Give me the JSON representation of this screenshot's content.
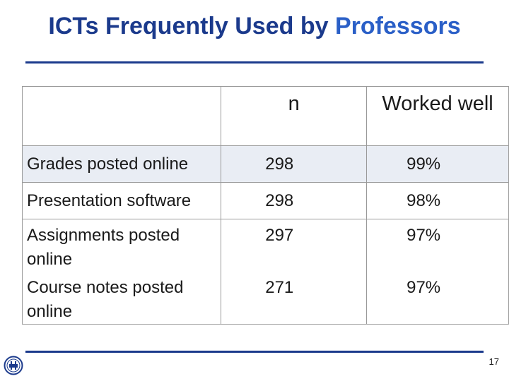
{
  "slide": {
    "title_part1": "ICTs Frequently Used by",
    "title_part2": "Professors",
    "page_number": "17"
  },
  "table": {
    "header": {
      "blank": "",
      "n": "n",
      "worked_well": "Worked well"
    },
    "rows": [
      {
        "item": "Grades posted online",
        "n": "298",
        "worked_well": "99%"
      },
      {
        "item": "Presentation software",
        "n": "298",
        "worked_well": "98%"
      },
      {
        "item": "Assignments posted online",
        "n": "297",
        "worked_well": "97%"
      },
      {
        "item": "Course notes posted online",
        "n": "271",
        "worked_well": "97%"
      }
    ]
  },
  "colors": {
    "title": "#1b3a8c",
    "title_accent": "#2a5fc7",
    "rule": "#1b3a8c",
    "shaded_row": "#e9edf4"
  },
  "icons": {
    "logo": "circular-emblem-logo"
  }
}
